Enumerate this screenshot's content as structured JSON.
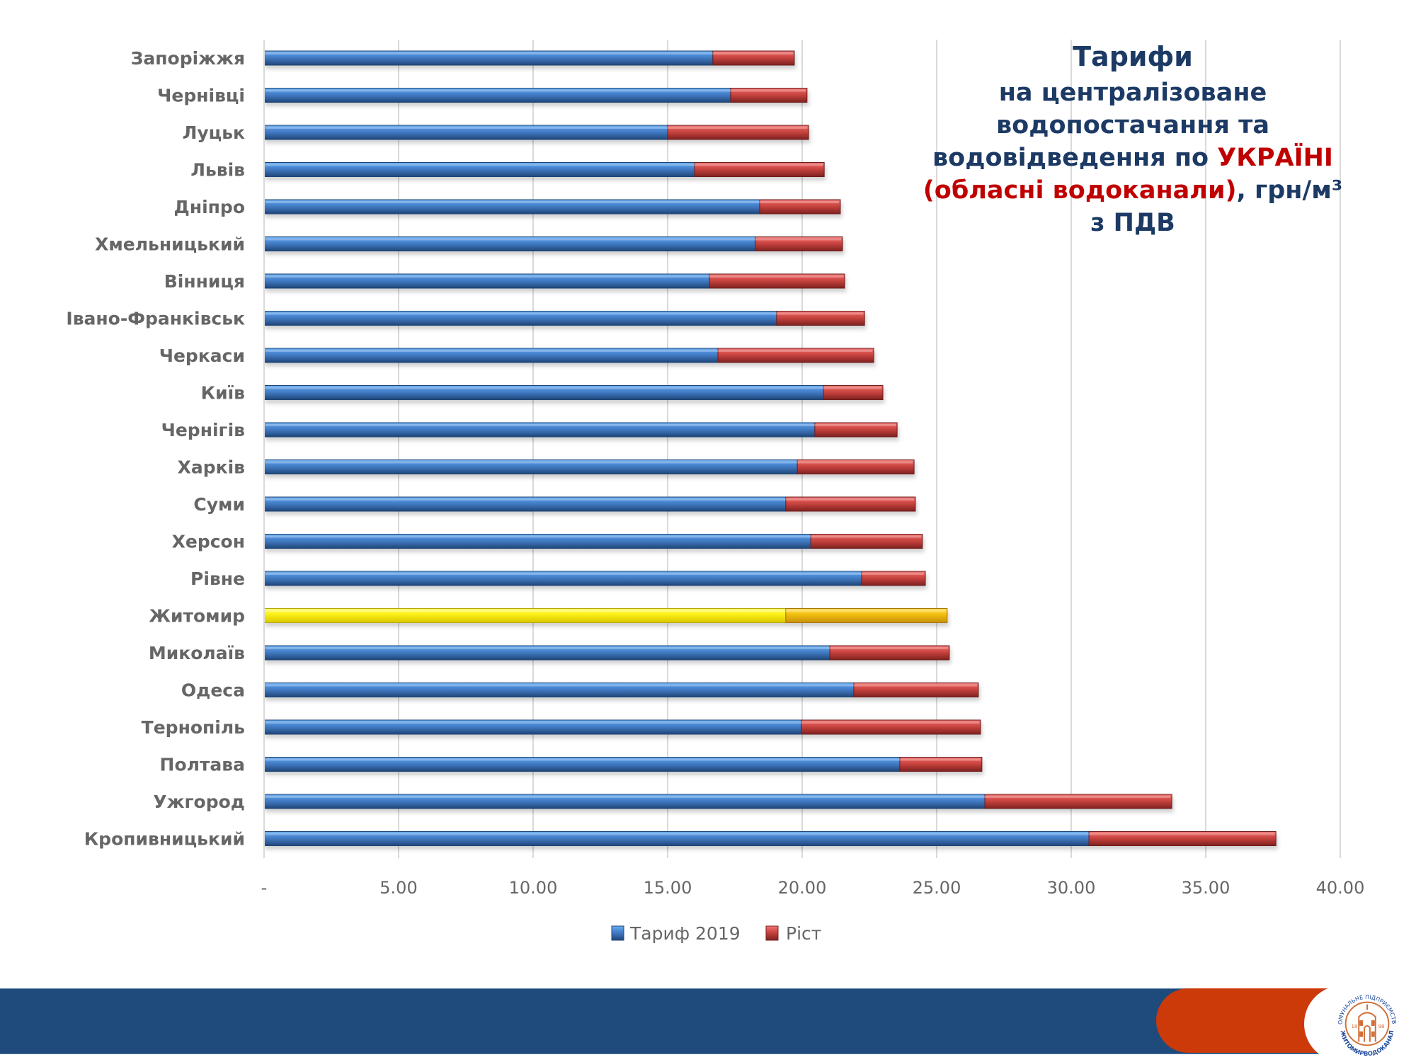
{
  "title": {
    "line1": "Тарифи",
    "line2": "на централізоване",
    "line3": "водопостачання та",
    "line4_dark": "водовідведення по ",
    "line4_red": "УКРАЇНІ",
    "line5_red": "(обласні водоканали)",
    "line5_dark": ", грн/м³",
    "line6": "з ПДВ"
  },
  "colors": {
    "series1": "#3f78c0",
    "series2": "#c0403c",
    "highlight": "#f5ec1a",
    "highlight_growth": "#f2bf12",
    "title_dark": "#1c3a64",
    "title_red": "#c00000",
    "footer_blue": "#1f4a7c",
    "footer_orange": "#cc3a0a",
    "logo_orange": "#d0703a",
    "logo_blue": "#1f4a9c"
  },
  "chart_data": {
    "type": "bar",
    "orientation": "horizontal",
    "stacked": true,
    "title": "Тарифи на централізоване водопостачання та водовідведення по УКРАЇНІ (обласні водоканали), грн/м³ з ПДВ",
    "xlabel": "",
    "ylabel": "",
    "xlim": [
      0,
      40
    ],
    "x_ticks": [
      0,
      5,
      10,
      15,
      20,
      25,
      30,
      35,
      40
    ],
    "x_tick_labels": [
      "-",
      "5.00",
      "10.00",
      "15.00",
      "20.00",
      "25.00",
      "30.00",
      "35.00",
      "40.00"
    ],
    "grid": "vertical",
    "legend_position": "bottom",
    "highlight_category": "Житомир",
    "categories": [
      "Запоріжжя",
      "Чернівці",
      "Луцьк",
      "Львів",
      "Дніпро",
      "Хмельницький",
      "Вінниця",
      "Івано-Франківськ",
      "Черкаси",
      "Київ",
      "Чернігів",
      "Харків",
      "Суми",
      "Херсон",
      "Рівне",
      "Житомир",
      "Миколаїв",
      "Одеса",
      "Тернопіль",
      "Полтава",
      "Ужгород",
      "Кропивницький"
    ],
    "series": [
      {
        "name": "Тариф 2019",
        "values": [
          16.68,
          17.34,
          15.0,
          16.0,
          18.42,
          18.26,
          16.55,
          19.05,
          16.87,
          20.79,
          20.47,
          19.82,
          19.39,
          20.32,
          22.21,
          19.39,
          21.03,
          21.92,
          19.97,
          23.63,
          26.79,
          30.66
        ]
      },
      {
        "name": "Ріст",
        "values": [
          3.03,
          2.84,
          5.24,
          4.82,
          3.0,
          3.24,
          5.03,
          3.27,
          5.79,
          2.21,
          3.06,
          4.34,
          4.82,
          4.15,
          2.37,
          6.0,
          4.44,
          4.63,
          6.66,
          3.05,
          6.95,
          6.95
        ]
      }
    ]
  },
  "logo": {
    "top_text": "КОМУНАЛЬНЕ ПІДПРИЄМСТВО",
    "bottom_text": "ЖИТОМИРВОДОКАНАЛ",
    "year_left": "18",
    "year_right": "98"
  }
}
